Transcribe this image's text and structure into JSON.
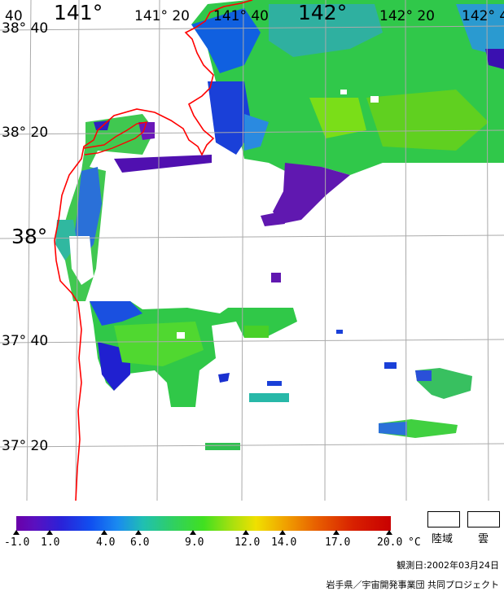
{
  "map": {
    "lon_labels": {
      "l140_40": "40",
      "l141": "141°",
      "l141_20": "141° 20",
      "l141_40": "141° 40",
      "l142": "142°",
      "l142_20": "142° 20",
      "l142_40": "142° 4"
    },
    "lat_labels": {
      "l38_40": "38° 40",
      "l38_20": "38° 20",
      "l38": "38°",
      "l37_40": "37° 40",
      "l37_20": "37° 20"
    },
    "colors": {
      "coastline": "#ff0000",
      "grid": "#aaaaaa",
      "cloud": "#ffffff"
    }
  },
  "legend": {
    "ticks": [
      "-1.0",
      "1.0",
      "4.0",
      "6.0",
      "9.0",
      "12.0",
      "14.0",
      "17.0",
      "20.0"
    ],
    "unit": "°C",
    "land_label": "陸域",
    "cloud_label": "雲"
  },
  "footer": {
    "observation_date": "観測日:2002年03月24日",
    "project": "岩手県／宇宙開発事業団  共同プロジェクト"
  }
}
